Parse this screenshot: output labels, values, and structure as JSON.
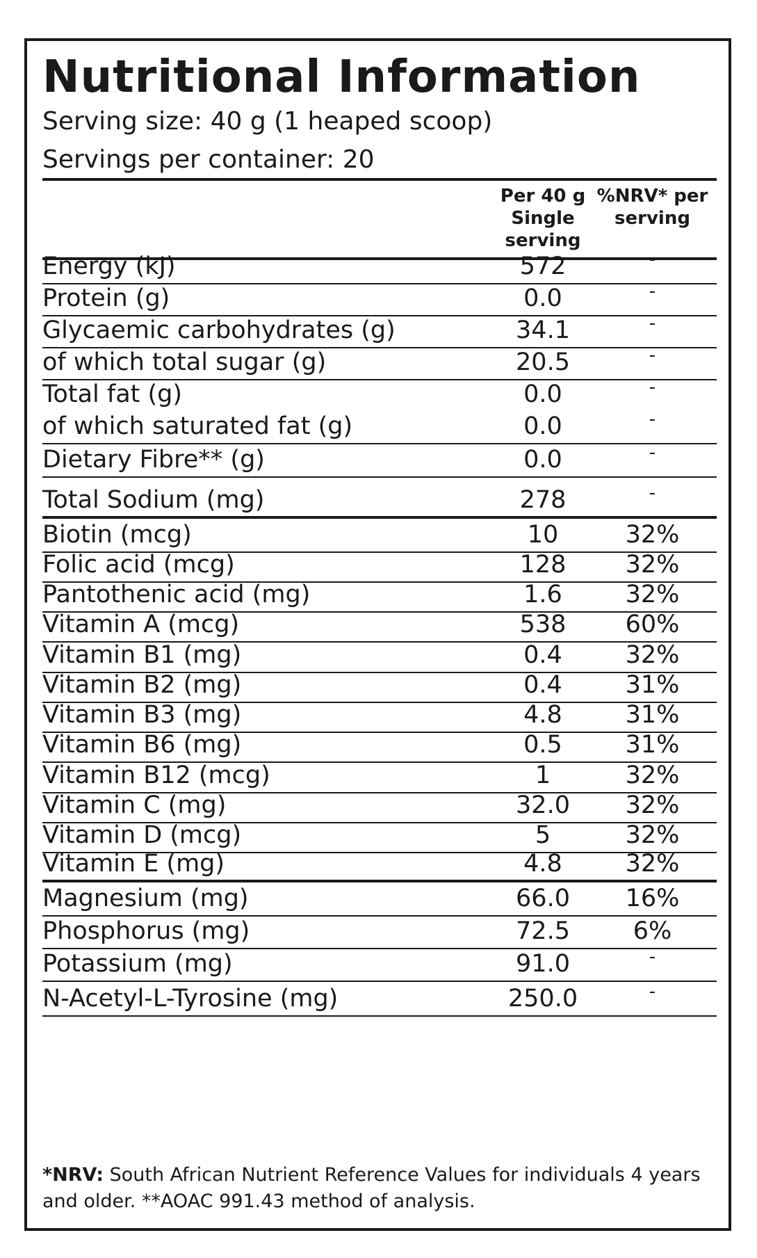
{
  "title": "Nutritional Information",
  "serving_size": "Serving size: 40 g (1 heaped scoop)",
  "servings_per_container": "Servings per container: 20",
  "header": {
    "col1_lines": [
      "Per 40 g",
      "Single",
      "serving"
    ],
    "col2_lines": [
      "%NRV* per",
      "serving"
    ]
  },
  "rows": [
    {
      "name": "Energy (kJ)",
      "amount": "572",
      "nrv": "-"
    },
    {
      "name": "Protein (g)",
      "amount": "0.0",
      "nrv": "-"
    },
    {
      "name": "Glycaemic carbohydrates (g)",
      "amount": "34.1",
      "nrv": "-"
    },
    {
      "name": "of which total sugar (g)",
      "amount": "20.5",
      "nrv": "-"
    },
    {
      "name": "Total fat (g)",
      "amount": "0.0",
      "nrv": "-"
    },
    {
      "name": "of which saturated fat (g)",
      "amount": "0.0",
      "nrv": "-"
    },
    {
      "name": "Dietary Fibre** (g)",
      "amount": "0.0",
      "nrv": "-"
    },
    {
      "name": "Total Sodium (mg)",
      "amount": "278",
      "nrv": "-"
    },
    {
      "name": "Biotin (mcg)",
      "amount": "10",
      "nrv": "32%"
    },
    {
      "name": "Folic acid (mcg)",
      "amount": "128",
      "nrv": "32%"
    },
    {
      "name": "Pantothenic acid (mg)",
      "amount": "1.6",
      "nrv": "32%"
    },
    {
      "name": "Vitamin A (mcg)",
      "amount": "538",
      "nrv": "60%"
    },
    {
      "name": "Vitamin B1 (mg)",
      "amount": "0.4",
      "nrv": "32%"
    },
    {
      "name": "Vitamin B2 (mg)",
      "amount": "0.4",
      "nrv": "31%"
    },
    {
      "name": "Vitamin B3 (mg)",
      "amount": "4.8",
      "nrv": "31%"
    },
    {
      "name": "Vitamin B6 (mg)",
      "amount": "0.5",
      "nrv": "31%"
    },
    {
      "name": "Vitamin B12 (mcg)",
      "amount": "1",
      "nrv": "32%"
    },
    {
      "name": "Vitamin C (mg)",
      "amount": "32.0",
      "nrv": "32%"
    },
    {
      "name": "Vitamin D (mcg)",
      "amount": "5",
      "nrv": "32%"
    },
    {
      "name": "Vitamin E (mg)",
      "amount": "4.8",
      "nrv": "32%"
    },
    {
      "name": "Magnesium (mg)",
      "amount": "66.0",
      "nrv": "16%"
    },
    {
      "name": "Phosphorus (mg)",
      "amount": "72.5",
      "nrv": "6%"
    },
    {
      "name": "Potassium (mg)",
      "amount": "91.0",
      "nrv": "-"
    },
    {
      "name": "N-Acetyl-L-Tyrosine (mg)",
      "amount": "250.0",
      "nrv": "-"
    }
  ],
  "footnote": {
    "bold": "*NRV:",
    "text": " South African Nutrient Reference Values for individuals 4 years and older. **AOAC 991.43 method of analysis."
  }
}
